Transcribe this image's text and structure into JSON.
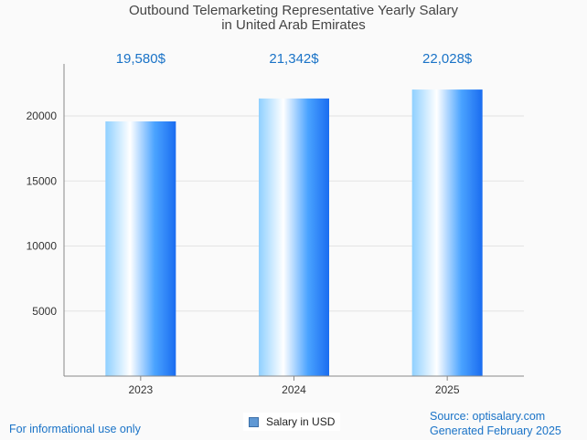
{
  "chart_data": {
    "type": "bar",
    "title_line1": "Outbound Telemarketing Representative Yearly Salary",
    "title_line2": "in United Arab Emirates",
    "categories": [
      "2023",
      "2024",
      "2025"
    ],
    "values": [
      19580,
      21342,
      22028
    ],
    "data_labels": [
      "19,580$",
      "21,342$",
      "22,028$"
    ],
    "y_ticks": [
      5000,
      10000,
      15000,
      20000
    ],
    "ylim": [
      0,
      24000
    ],
    "grid": true,
    "legend": {
      "label": "Salary in USD",
      "position": "bottom-center"
    },
    "colors": {
      "bar_edge": "#1a6cf0",
      "bar_light": "#ffffff",
      "bar_mid": "#8fd0ff",
      "label": "#1a73c7"
    }
  },
  "footer": {
    "left": "For informational use only",
    "source": "Source: optisalary.com",
    "generated": "Generated February 2025"
  }
}
